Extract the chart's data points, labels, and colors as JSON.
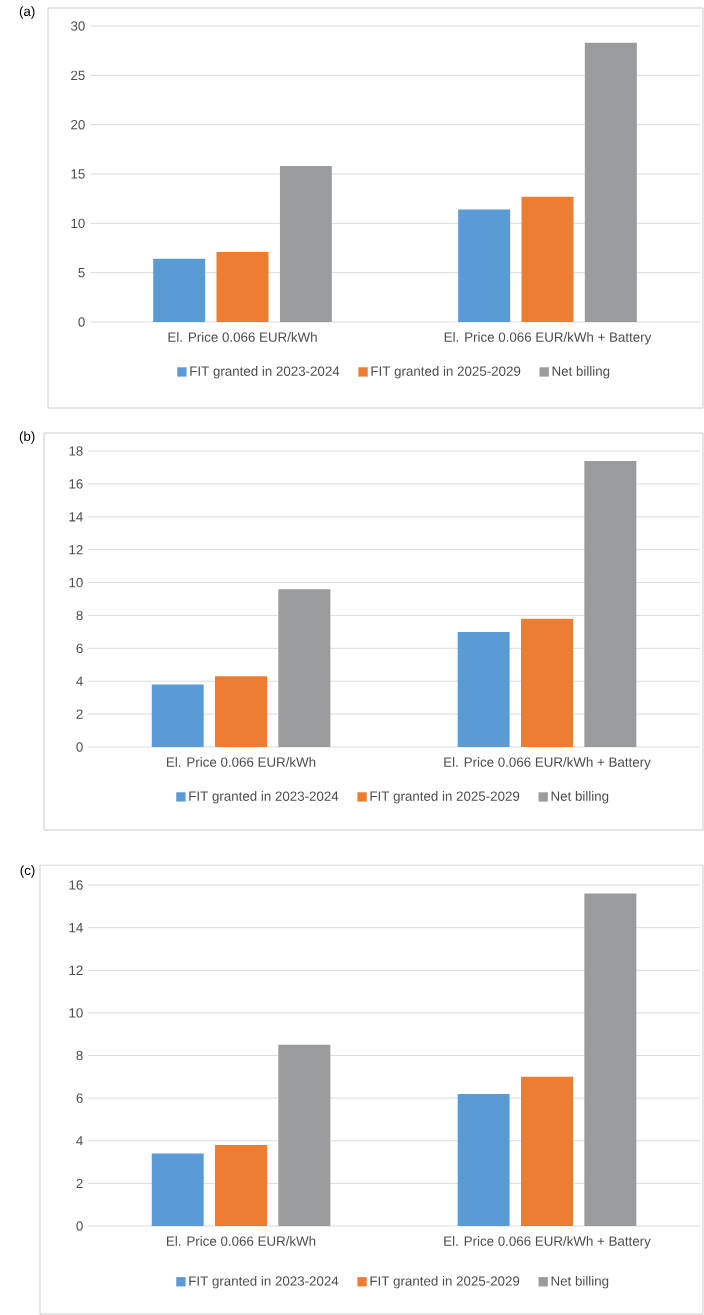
{
  "chart_data": [
    {
      "type": "bar",
      "title": "(a)",
      "categories": [
        "El. Price 0.066 EUR/kWh",
        "El. Price 0.066 EUR/kWh + Battery"
      ],
      "ylim": [
        0,
        30
      ],
      "yticks": [
        0,
        5,
        10,
        15,
        20,
        25,
        30
      ],
      "grid": "y",
      "legend": "bottom",
      "series": [
        {
          "name": "FIT granted in 2023-2024",
          "color": "#5b9bd5",
          "values": [
            6.4,
            11.4
          ]
        },
        {
          "name": "FIT granted in 2025-2029",
          "color": "#ed7d31",
          "values": [
            7.1,
            12.7
          ]
        },
        {
          "name": "Net billing",
          "color": "#9a9b9d",
          "values": [
            15.8,
            28.3
          ]
        }
      ]
    },
    {
      "type": "bar",
      "title": "(b)",
      "categories": [
        "El. Price 0.066 EUR/kWh",
        "El. Price 0.066 EUR/kWh + Battery"
      ],
      "ylim": [
        0,
        18
      ],
      "yticks": [
        0,
        2,
        4,
        6,
        8,
        10,
        12,
        14,
        16,
        18
      ],
      "grid": "y",
      "legend": "bottom",
      "series": [
        {
          "name": "FIT granted in 2023-2024",
          "color": "#5b9bd5",
          "values": [
            3.8,
            7.0
          ]
        },
        {
          "name": "FIT granted in 2025-2029",
          "color": "#ed7d31",
          "values": [
            4.3,
            7.8
          ]
        },
        {
          "name": "Net billing",
          "color": "#9a9b9d",
          "values": [
            9.6,
            17.4
          ]
        }
      ]
    },
    {
      "type": "bar",
      "title": "(c)",
      "categories": [
        "El. Price 0.066 EUR/kWh",
        "El. Price 0.066 EUR/kWh + Battery"
      ],
      "ylim": [
        0,
        16
      ],
      "yticks": [
        0,
        2,
        4,
        6,
        8,
        10,
        12,
        14,
        16
      ],
      "grid": "y",
      "legend": "bottom",
      "series": [
        {
          "name": "FIT granted in 2023-2024",
          "color": "#5b9bd5",
          "values": [
            3.4,
            6.2
          ]
        },
        {
          "name": "FIT granted in 2025-2029",
          "color": "#ed7d31",
          "values": [
            3.8,
            7.0
          ]
        },
        {
          "name": "Net billing",
          "color": "#9a9b9d",
          "values": [
            8.5,
            15.6
          ]
        }
      ]
    }
  ]
}
